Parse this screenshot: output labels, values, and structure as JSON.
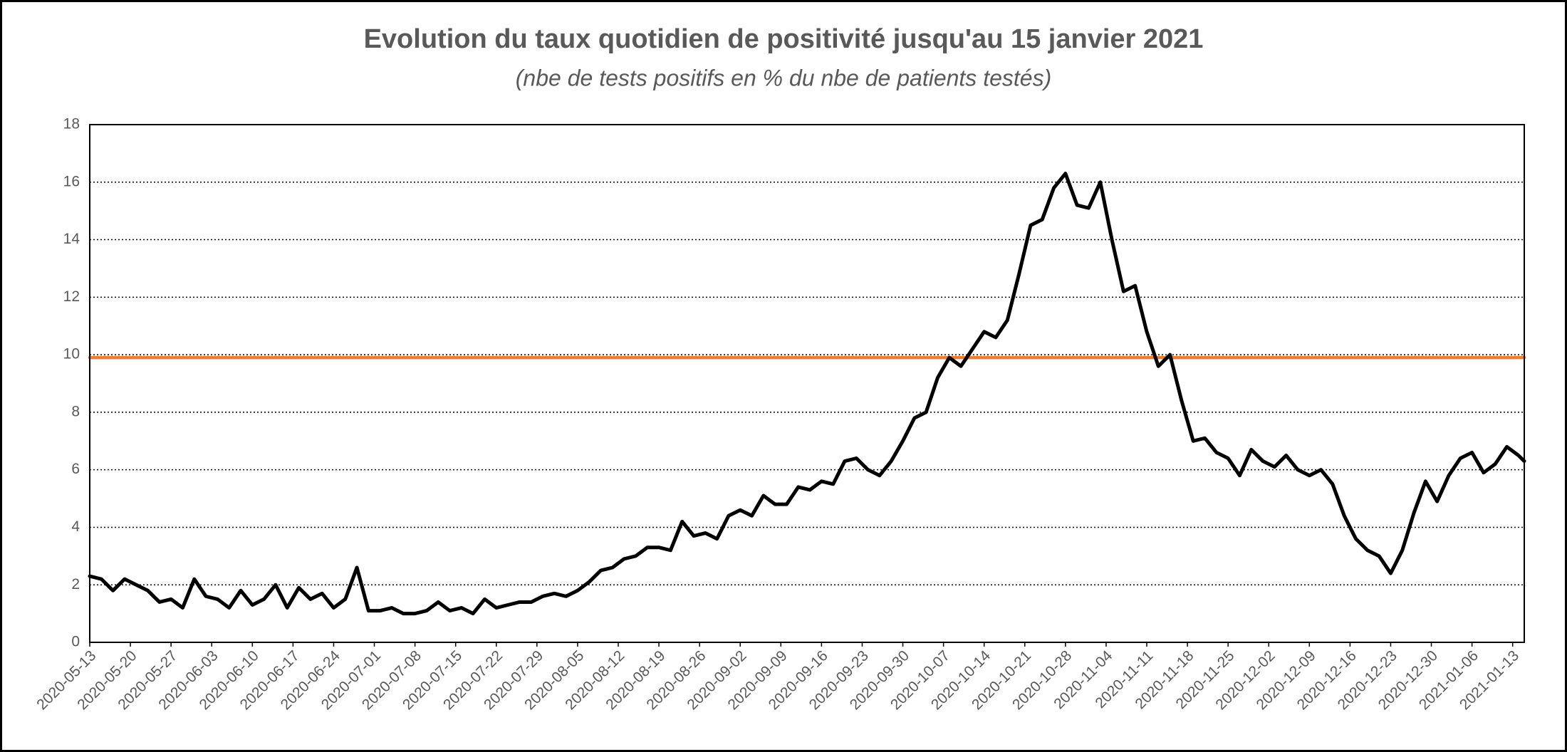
{
  "chart_data": {
    "type": "line",
    "title": "Evolution du taux quotidien de positivité jusqu'au 15 janvier 2021",
    "subtitle": "(nbe de tests positifs en % du nbe de patients testés)",
    "x": [
      "2020-05-13",
      "2020-05-15",
      "2020-05-17",
      "2020-05-19",
      "2020-05-21",
      "2020-05-23",
      "2020-05-25",
      "2020-05-27",
      "2020-05-29",
      "2020-05-31",
      "2020-06-02",
      "2020-06-04",
      "2020-06-06",
      "2020-06-08",
      "2020-06-10",
      "2020-06-12",
      "2020-06-14",
      "2020-06-16",
      "2020-06-18",
      "2020-06-20",
      "2020-06-22",
      "2020-06-24",
      "2020-06-26",
      "2020-06-28",
      "2020-06-30",
      "2020-07-02",
      "2020-07-04",
      "2020-07-06",
      "2020-07-08",
      "2020-07-10",
      "2020-07-12",
      "2020-07-14",
      "2020-07-16",
      "2020-07-18",
      "2020-07-20",
      "2020-07-22",
      "2020-07-24",
      "2020-07-26",
      "2020-07-28",
      "2020-07-30",
      "2020-08-01",
      "2020-08-03",
      "2020-08-05",
      "2020-08-07",
      "2020-08-09",
      "2020-08-11",
      "2020-08-13",
      "2020-08-15",
      "2020-08-17",
      "2020-08-19",
      "2020-08-21",
      "2020-08-23",
      "2020-08-25",
      "2020-08-27",
      "2020-08-29",
      "2020-08-31",
      "2020-09-02",
      "2020-09-04",
      "2020-09-06",
      "2020-09-08",
      "2020-09-10",
      "2020-09-12",
      "2020-09-14",
      "2020-09-16",
      "2020-09-18",
      "2020-09-20",
      "2020-09-22",
      "2020-09-24",
      "2020-09-26",
      "2020-09-28",
      "2020-09-30",
      "2020-10-02",
      "2020-10-04",
      "2020-10-06",
      "2020-10-08",
      "2020-10-10",
      "2020-10-12",
      "2020-10-14",
      "2020-10-16",
      "2020-10-18",
      "2020-10-20",
      "2020-10-22",
      "2020-10-24",
      "2020-10-26",
      "2020-10-28",
      "2020-10-30",
      "2020-11-01",
      "2020-11-03",
      "2020-11-05",
      "2020-11-07",
      "2020-11-09",
      "2020-11-11",
      "2020-11-13",
      "2020-11-15",
      "2020-11-17",
      "2020-11-19",
      "2020-11-21",
      "2020-11-23",
      "2020-11-25",
      "2020-11-27",
      "2020-11-29",
      "2020-12-01",
      "2020-12-03",
      "2020-12-05",
      "2020-12-07",
      "2020-12-09",
      "2020-12-11",
      "2020-12-13",
      "2020-12-15",
      "2020-12-17",
      "2020-12-19",
      "2020-12-21",
      "2020-12-23",
      "2020-12-25",
      "2020-12-27",
      "2020-12-29",
      "2020-12-31",
      "2021-01-02",
      "2021-01-04",
      "2021-01-06",
      "2021-01-08",
      "2021-01-10",
      "2021-01-12",
      "2021-01-14",
      "2021-01-15"
    ],
    "series": [
      {
        "color": "#000000",
        "values": [
          2.3,
          2.2,
          1.8,
          2.2,
          2.0,
          1.8,
          1.4,
          1.5,
          1.2,
          2.2,
          1.6,
          1.5,
          1.2,
          1.8,
          1.3,
          1.5,
          2.0,
          1.2,
          1.9,
          1.5,
          1.7,
          1.2,
          1.5,
          2.6,
          1.1,
          1.1,
          1.2,
          1.0,
          1.0,
          1.1,
          1.4,
          1.1,
          1.2,
          1.0,
          1.5,
          1.2,
          1.3,
          1.4,
          1.4,
          1.6,
          1.7,
          1.6,
          1.8,
          2.1,
          2.5,
          2.6,
          2.9,
          3.0,
          3.3,
          3.3,
          3.2,
          4.2,
          3.7,
          3.8,
          3.6,
          4.4,
          4.6,
          4.4,
          5.1,
          4.8,
          4.8,
          5.4,
          5.3,
          5.6,
          5.5,
          6.3,
          6.4,
          6.0,
          5.8,
          6.3,
          7.0,
          7.8,
          8.0,
          9.2,
          9.9,
          9.6,
          10.2,
          10.8,
          10.6,
          11.2,
          12.8,
          14.5,
          14.7,
          15.8,
          16.3,
          15.2,
          15.1,
          16.0,
          14.0,
          12.2,
          12.4,
          10.8,
          9.6,
          10.0,
          8.4,
          7.0,
          7.1,
          6.6,
          6.4,
          5.8,
          6.7,
          6.3,
          6.1,
          6.5,
          6.0,
          5.8,
          6.0,
          5.5,
          4.4,
          3.6,
          3.2,
          3.0,
          2.4,
          3.2,
          4.5,
          5.6,
          4.9,
          5.8,
          6.4,
          6.6,
          5.9,
          6.2,
          6.8,
          6.5,
          6.3
        ]
      },
      {
        "color": "#ed7d31",
        "values": [
          9.9,
          9.9,
          9.9,
          9.9,
          9.9,
          9.9,
          9.9,
          9.9,
          9.9,
          9.9,
          9.9,
          9.9,
          9.9,
          9.9,
          9.9,
          9.9,
          9.9,
          9.9,
          9.9,
          9.9,
          9.9,
          9.9,
          9.9,
          9.9,
          9.9,
          9.9,
          9.9,
          9.9,
          9.9,
          9.9,
          9.9,
          9.9,
          9.9,
          9.9,
          9.9,
          9.9,
          9.9,
          9.9,
          9.9,
          9.9,
          9.9,
          9.9,
          9.9,
          9.9,
          9.9,
          9.9,
          9.9,
          9.9,
          9.9,
          9.9,
          9.9,
          9.9,
          9.9,
          9.9,
          9.9,
          9.9,
          9.9,
          9.9,
          9.9,
          9.9,
          9.9,
          9.9,
          9.9,
          9.9,
          9.9,
          9.9,
          9.9,
          9.9,
          9.9,
          9.9,
          9.9,
          9.9,
          9.9,
          9.9,
          9.9,
          9.9,
          9.9,
          9.9,
          9.9,
          9.9,
          9.9,
          9.9,
          9.9,
          9.9,
          9.9,
          9.9,
          9.9,
          9.9,
          9.9,
          9.9,
          9.9,
          9.9,
          9.9,
          9.9,
          9.9,
          9.9,
          9.9,
          9.9,
          9.9,
          9.9,
          9.9,
          9.9,
          9.9,
          9.9,
          9.9,
          9.9,
          9.9,
          9.9,
          9.9,
          9.9,
          9.9,
          9.9,
          9.9,
          9.9,
          9.9,
          9.9,
          9.9,
          9.9,
          9.9,
          9.9,
          9.9,
          9.9,
          9.9,
          9.9,
          9.9
        ]
      }
    ],
    "xlim": [
      "2020-05-13",
      "2021-01-15"
    ],
    "xticks": [
      "2020-05-13",
      "2020-05-20",
      "2020-05-27",
      "2020-06-03",
      "2020-06-10",
      "2020-06-17",
      "2020-06-24",
      "2020-07-01",
      "2020-07-08",
      "2020-07-15",
      "2020-07-22",
      "2020-07-29",
      "2020-08-05",
      "2020-08-12",
      "2020-08-19",
      "2020-08-26",
      "2020-09-02",
      "2020-09-09",
      "2020-09-16",
      "2020-09-23",
      "2020-09-30",
      "2020-10-07",
      "2020-10-14",
      "2020-10-21",
      "2020-10-28",
      "2020-11-04",
      "2020-11-11",
      "2020-11-18",
      "2020-11-25",
      "2020-12-02",
      "2020-12-09",
      "2020-12-16",
      "2020-12-23",
      "2020-12-30",
      "2021-01-06",
      "2021-01-13"
    ],
    "ylim": [
      0,
      18
    ],
    "yticks": [
      0,
      2,
      4,
      6,
      8,
      10,
      12,
      14,
      16,
      18
    ],
    "grid": true
  }
}
